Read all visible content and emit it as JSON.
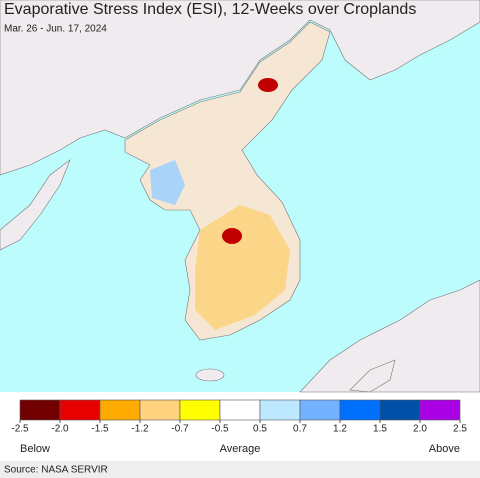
{
  "title": "Evaporative Stress Index (ESI), 12-Weeks over Croplands",
  "subtitle": "Mar. 26 - Jun. 17, 2024",
  "legend": {
    "colors": [
      "#730000",
      "#e60000",
      "#ffaa00",
      "#fed27f",
      "#ffff00",
      "#ffffff",
      "#bee8ff",
      "#73b2ff",
      "#0070ff",
      "#004fa8",
      "#a900e6"
    ],
    "ticks": [
      -2.5,
      {
        "value": -2.0,
        "label": "-2.0"
      },
      -1.5,
      -1.2,
      -0.7,
      -0.5,
      0.5,
      0.7,
      1.2,
      1.5,
      {
        "value": 2.0,
        "label": "2.0"
      },
      2.5
    ],
    "labels": [
      "Below",
      "Average",
      "Above"
    ]
  },
  "source": "Source: NASA SERVIR"
}
